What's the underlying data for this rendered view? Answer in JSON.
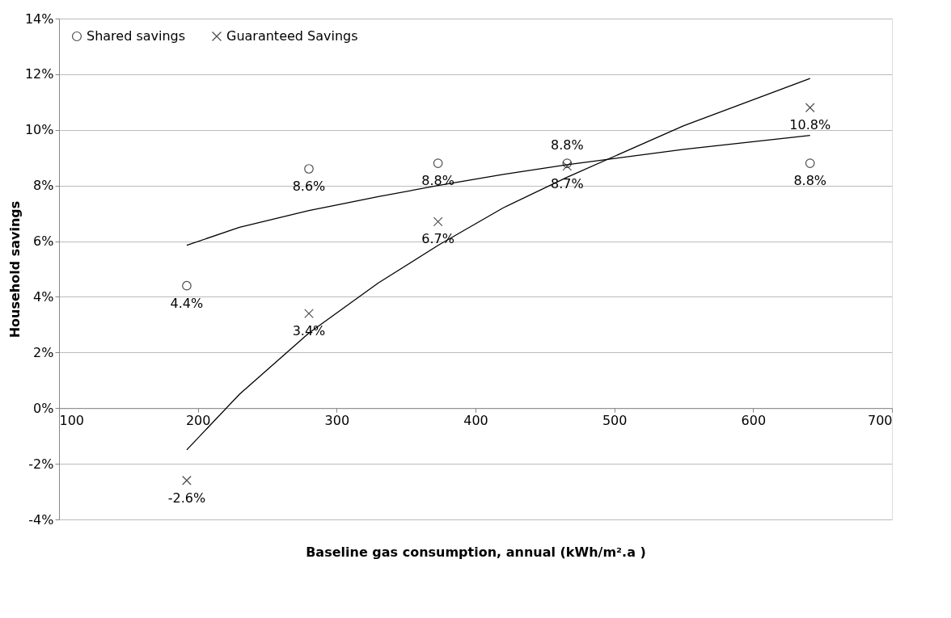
{
  "chart_data": {
    "type": "scatter",
    "xlabel": "Baseline gas consumption, annual (kWh/m².a )",
    "ylabel": "Household savings",
    "xlim": [
      100,
      700
    ],
    "xticks": [
      100,
      200,
      300,
      400,
      500,
      600,
      700
    ],
    "ylim": [
      -4,
      14
    ],
    "yticks": [
      {
        "value": -4,
        "label": "-4%"
      },
      {
        "value": -2,
        "label": "-2%"
      },
      {
        "value": 0,
        "label": "0%"
      },
      {
        "value": 2,
        "label": "2%"
      },
      {
        "value": 4,
        "label": "4%"
      },
      {
        "value": 6,
        "label": "6%"
      },
      {
        "value": 8,
        "label": "8%"
      },
      {
        "value": 10,
        "label": "10%"
      },
      {
        "value": 12,
        "label": "12%"
      },
      {
        "value": 14,
        "label": "14%"
      }
    ],
    "grid": "y",
    "legend": "top left",
    "series": [
      {
        "name": "Shared savings",
        "marker": "circle",
        "color": "#000000",
        "x": [
          192,
          280,
          373,
          466,
          641
        ],
        "values": [
          4.4,
          8.6,
          8.8,
          8.8,
          8.8
        ],
        "value_labels": [
          "4.4%",
          "8.6%",
          "8.8%",
          "8.8%",
          "8.8%"
        ]
      },
      {
        "name": "Guaranteed Savings",
        "marker": "cross",
        "color": "#000000",
        "x": [
          192,
          280,
          373,
          466,
          641
        ],
        "values": [
          -2.6,
          3.4,
          6.7,
          8.7,
          10.8
        ],
        "value_labels": [
          "-2.6%",
          "3.4%",
          "6.7%",
          "8.7%",
          "10.8%"
        ]
      },
      {
        "type": "line",
        "marker": "none",
        "line_style": "solid",
        "color": "#000000",
        "x": [
          192,
          230,
          280,
          330,
          373,
          420,
          466,
          550,
          641
        ],
        "values": [
          5.85,
          6.5,
          7.1,
          7.6,
          8.0,
          8.4,
          8.75,
          9.3,
          9.8
        ]
      },
      {
        "type": "line",
        "marker": "none",
        "line_style": "solid",
        "color": "#000000",
        "x": [
          192,
          230,
          280,
          330,
          373,
          420,
          466,
          550,
          641
        ],
        "values": [
          -1.5,
          0.5,
          2.7,
          4.5,
          5.85,
          7.2,
          8.3,
          10.15,
          11.85
        ]
      }
    ]
  }
}
